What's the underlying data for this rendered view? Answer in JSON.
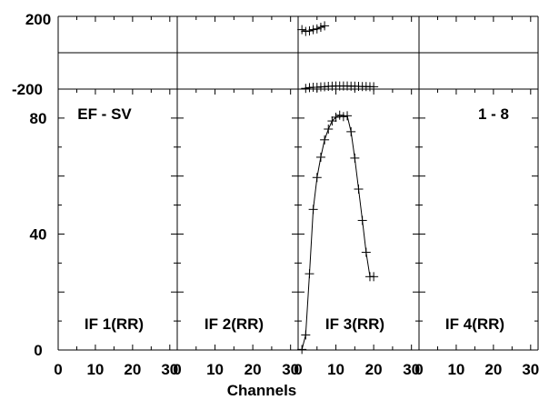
{
  "chart_data": {
    "type": "line",
    "title": "",
    "xlabel": "Channels",
    "panel_title_left": "EF - SV",
    "panel_title_right": "1 - 8",
    "phase_axis": {
      "ylim": [
        -200,
        200
      ],
      "tick_labels": [
        "200",
        "-200"
      ]
    },
    "amp_axis": {
      "ylim": [
        0,
        90
      ],
      "tick_labels": [
        "0",
        "40",
        "80"
      ]
    },
    "x_tick_labels": [
      "0",
      "10",
      "20",
      "30"
    ],
    "xlim": [
      0,
      32
    ],
    "panels": [
      {
        "label": "IF 1(RR)",
        "phase": [],
        "amplitude": []
      },
      {
        "label": "IF 2(RR)",
        "phase": [],
        "amplitude": []
      },
      {
        "label": "IF 3(RR)",
        "phase": {
          "x": [
            1,
            2,
            3,
            4,
            5,
            6,
            7,
            2,
            3,
            4,
            5,
            6,
            7,
            8,
            9,
            10,
            11,
            12,
            13,
            14,
            15,
            16,
            17,
            18,
            19,
            20
          ],
          "y": [
            127,
            117,
            120,
            127,
            131,
            140,
            148,
            -196,
            -192,
            -190,
            -190,
            -188,
            -187,
            -185,
            -184,
            -183,
            -183,
            -183,
            -183,
            -184,
            -184,
            -185,
            -186,
            -186,
            -187,
            -187
          ]
        },
        "amplitude": {
          "x": [
            1,
            2,
            3,
            4,
            5,
            6,
            7,
            8,
            9,
            10,
            11,
            12,
            13,
            14,
            15,
            16,
            17,
            18,
            19,
            20
          ],
          "y": [
            0.2,
            5.2,
            26.3,
            48.5,
            59.5,
            66.5,
            72.5,
            76.2,
            79.0,
            80.3,
            81.0,
            80.5,
            80.8,
            75.3,
            66.2,
            55.5,
            44.7,
            33.7,
            25.3,
            25.3
          ]
        }
      },
      {
        "label": "IF 4(RR)",
        "phase": [],
        "amplitude": []
      }
    ]
  }
}
